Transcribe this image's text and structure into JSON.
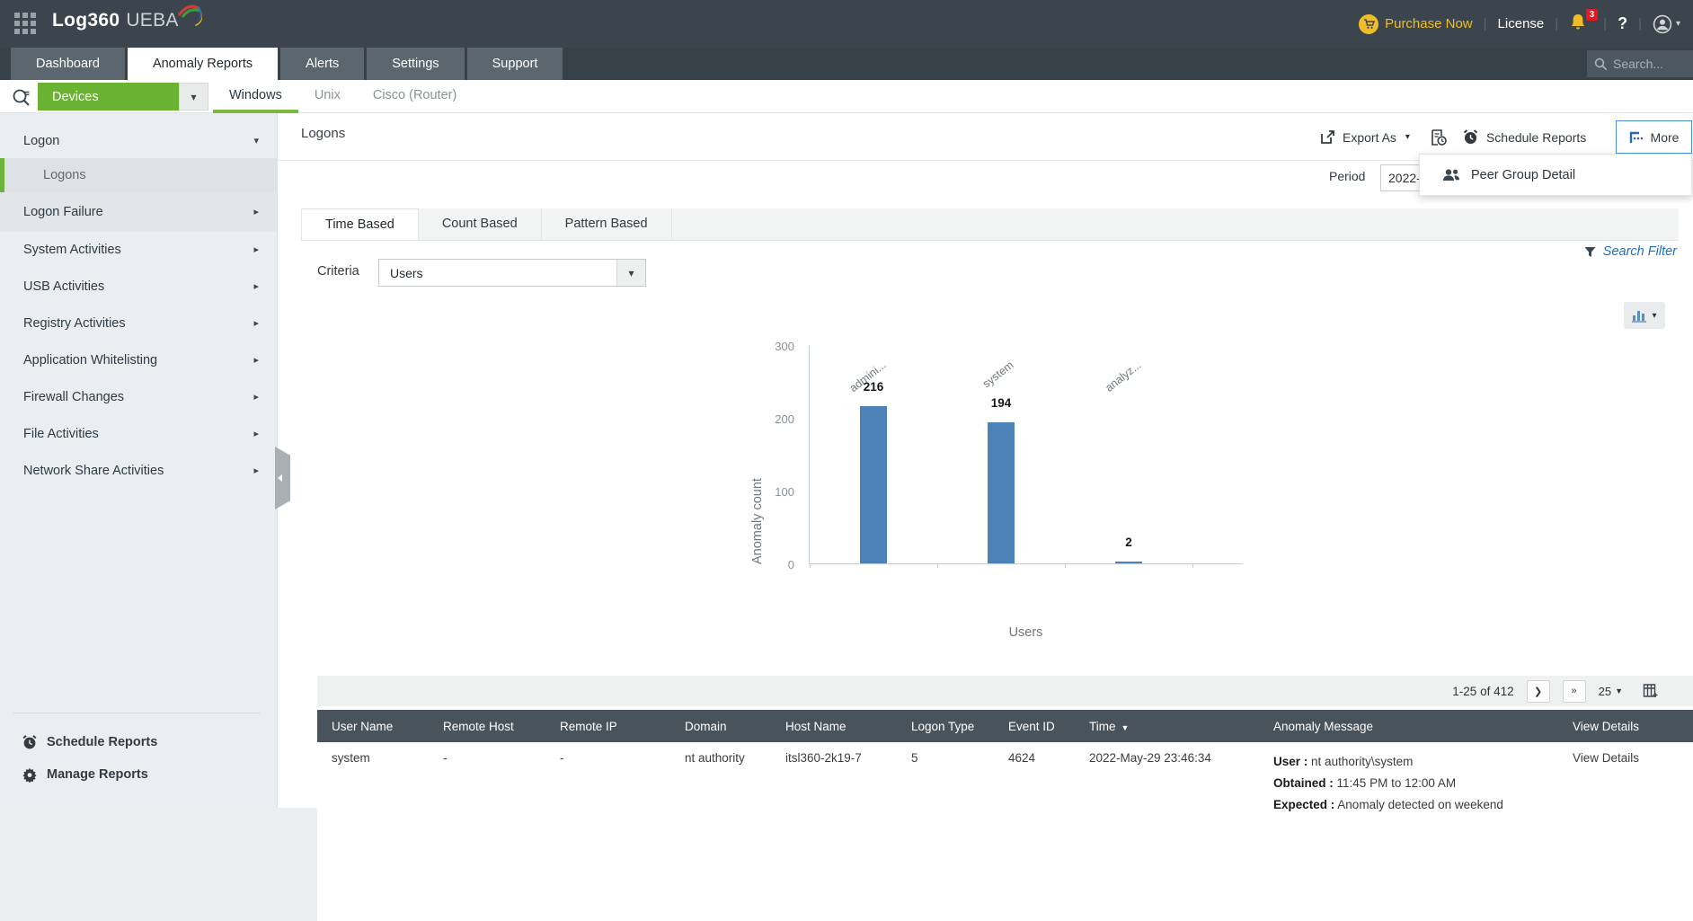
{
  "icons": {
    "caret_down": "▾",
    "chevron_right": "▸",
    "next_page": "❯",
    "last_page": "»"
  },
  "header": {
    "logo_primary": "Log360",
    "logo_secondary": "UEBA",
    "purchase_now": "Purchase Now",
    "license": "License",
    "notification_count": "3",
    "help": "?",
    "search_placeholder": "Search..."
  },
  "nav": {
    "tabs": [
      {
        "label": "Dashboard",
        "active": false
      },
      {
        "label": "Anomaly Reports",
        "active": true
      },
      {
        "label": "Alerts",
        "active": false
      },
      {
        "label": "Settings",
        "active": false
      },
      {
        "label": "Support",
        "active": false
      }
    ]
  },
  "subnav": {
    "device_selector": "Devices",
    "tabs": [
      {
        "label": "Windows",
        "active": true
      },
      {
        "label": "Unix",
        "active": false
      },
      {
        "label": "Cisco (Router)",
        "active": false
      }
    ]
  },
  "sidebar": {
    "items": [
      {
        "label": "Logon",
        "state": "expanded"
      },
      {
        "label": "Logons",
        "state": "selected-child"
      },
      {
        "label": "Logon Failure",
        "state": "shaded"
      },
      {
        "label": "System Activities",
        "state": "normal"
      },
      {
        "label": "USB Activities",
        "state": "normal"
      },
      {
        "label": "Registry Activities",
        "state": "normal"
      },
      {
        "label": "Application Whitelisting",
        "state": "normal"
      },
      {
        "label": "Firewall Changes",
        "state": "normal"
      },
      {
        "label": "File Activities",
        "state": "normal"
      },
      {
        "label": "Network Share Activities",
        "state": "normal"
      }
    ],
    "footer": [
      {
        "label": "Schedule Reports",
        "icon": "alarm-icon"
      },
      {
        "label": "Manage Reports",
        "icon": "gear-icon"
      }
    ]
  },
  "content": {
    "title": "Logons",
    "toolbar": {
      "export_as": "Export As",
      "schedule_reports": "Schedule Reports",
      "more": "More"
    },
    "more_menu": {
      "peer_group_detail": "Peer Group Detail"
    },
    "period_label": "Period",
    "period_value": "2022-",
    "view_tabs": [
      {
        "label": "Time Based",
        "active": true
      },
      {
        "label": "Count Based",
        "active": false
      },
      {
        "label": "Pattern Based",
        "active": false
      }
    ],
    "criteria_label": "Criteria",
    "criteria_value": "Users",
    "search_filter": "Search Filter"
  },
  "chart_data": {
    "type": "bar",
    "categories": [
      "admini...",
      "system",
      "analyz..."
    ],
    "values": [
      216,
      194,
      2
    ],
    "title": "",
    "xlabel": "Users",
    "ylabel": "Anomaly count",
    "ylim": [
      0,
      300
    ],
    "yticks": [
      0,
      100,
      200,
      300
    ],
    "bar_color": "#4d82b8",
    "grid": false,
    "legend": false,
    "data_labels": true
  },
  "table": {
    "pagination": {
      "range": "1-25 of 412",
      "page_size": "25"
    },
    "columns": [
      "User Name",
      "Remote Host",
      "Remote IP",
      "Domain",
      "Host Name",
      "Logon Type",
      "Event ID",
      "Time",
      "Anomaly Message",
      "View Details"
    ],
    "sorted_column": "Time",
    "rows": [
      {
        "user_name": "system",
        "remote_host": "-",
        "remote_ip": "-",
        "domain": "nt authority",
        "host_name": "itsl360-2k19-7",
        "logon_type": "5",
        "event_id": "4624",
        "time": "2022-May-29 23:46:34",
        "anomaly": [
          {
            "label": "User",
            "value": "nt authority\\system"
          },
          {
            "label": "Obtained",
            "value": "11:45 PM to 12:00 AM"
          },
          {
            "label": "Expected",
            "value": "Anomaly detected on weekend"
          }
        ],
        "view_details": "View Details"
      }
    ]
  }
}
